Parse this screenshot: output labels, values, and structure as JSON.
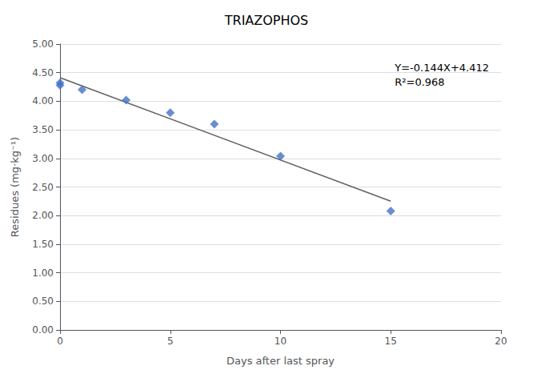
{
  "chart_data": {
    "type": "scatter",
    "title": "TRIAZOPHOS",
    "xlabel": "Days after last spray",
    "ylabel": "Residues (mg·kg⁻¹)",
    "series": [
      {
        "type": "scatter",
        "x": [
          0,
          0,
          1,
          3,
          5,
          7,
          10,
          15
        ],
        "values": [
          4.28,
          4.32,
          4.2,
          4.02,
          3.8,
          3.6,
          3.04,
          2.08
        ],
        "color": "#4472C4",
        "marker": "diamond"
      },
      {
        "type": "line",
        "x": [
          0,
          15
        ],
        "values": [
          4.412,
          2.252
        ],
        "color": "#606060",
        "line_style": "solid"
      }
    ],
    "annotation": "Y=-0.144X+4.412\nR²=0.968",
    "xlim": [
      0,
      20
    ],
    "ylim": [
      0,
      5.0
    ],
    "xticks": [
      0,
      5,
      10,
      15,
      20
    ],
    "yticks": [
      {
        "value": 0.0,
        "label": "0.00"
      },
      {
        "value": 0.5,
        "label": "0.50"
      },
      {
        "value": 1.0,
        "label": "1.00"
      },
      {
        "value": 1.5,
        "label": "1.50"
      },
      {
        "value": 2.0,
        "label": "2.00"
      },
      {
        "value": 2.5,
        "label": "2.50"
      },
      {
        "value": 3.0,
        "label": "3.00"
      },
      {
        "value": 3.5,
        "label": "3.50"
      },
      {
        "value": 4.0,
        "label": "4.00"
      },
      {
        "value": 4.5,
        "label": "4.50"
      },
      {
        "value": 5.0,
        "label": "5.00"
      }
    ],
    "grid": true
  }
}
